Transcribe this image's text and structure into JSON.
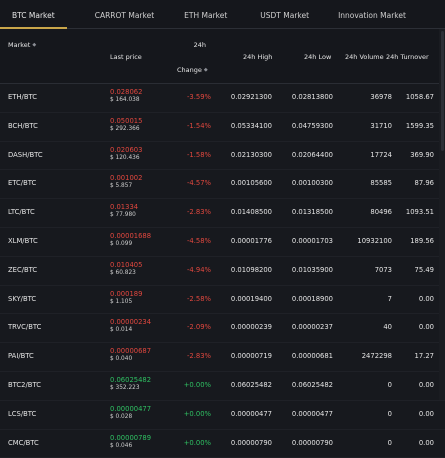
{
  "tabs": [
    {
      "label": "BTC Market"
    },
    {
      "label": "CARROT Market"
    },
    {
      "label": "ETH Market"
    },
    {
      "label": "USDT Market"
    },
    {
      "label": "Innovation Market"
    }
  ],
  "colors": {
    "accent": "#c9a64a",
    "down": "#e0473e",
    "up": "#2fbf62",
    "background": "#15171c"
  },
  "header": {
    "market": "Market",
    "last_price": "Last price",
    "change_line1": "24h",
    "change_line2": "Change",
    "high": "24h High",
    "low": "24h Low",
    "volume": "24h Volume",
    "turnover": "24h Turnover"
  },
  "rows": [
    {
      "pair": "ETH/BTC",
      "price": "0.028062",
      "usd": "$ 164.038",
      "change": "-3.59%",
      "high": "0.02921300",
      "low": "0.02813800",
      "volume": "36978",
      "turnover": "1058.67",
      "dir": "down"
    },
    {
      "pair": "BCH/BTC",
      "price": "0.050015",
      "usd": "$ 292.366",
      "change": "-1.54%",
      "high": "0.05334100",
      "low": "0.04759300",
      "volume": "31710",
      "turnover": "1599.35",
      "dir": "down"
    },
    {
      "pair": "DASH/BTC",
      "price": "0.020603",
      "usd": "$ 120.436",
      "change": "-1.58%",
      "high": "0.02130300",
      "low": "0.02064400",
      "volume": "17724",
      "turnover": "369.90",
      "dir": "down"
    },
    {
      "pair": "ETC/BTC",
      "price": "0.001002",
      "usd": "$ 5.857",
      "change": "-4.57%",
      "high": "0.00105600",
      "low": "0.00100300",
      "volume": "85585",
      "turnover": "87.96",
      "dir": "down"
    },
    {
      "pair": "LTC/BTC",
      "price": "0.01334",
      "usd": "$ 77.980",
      "change": "-2.83%",
      "high": "0.01408500",
      "low": "0.01318500",
      "volume": "80496",
      "turnover": "1093.51",
      "dir": "down"
    },
    {
      "pair": "XLM/BTC",
      "price": "0.00001688",
      "usd": "$ 0.099",
      "change": "-4.58%",
      "high": "0.00001776",
      "low": "0.00001703",
      "volume": "10932100",
      "turnover": "189.56",
      "dir": "down"
    },
    {
      "pair": "ZEC/BTC",
      "price": "0.010405",
      "usd": "$ 60.823",
      "change": "-4.94%",
      "high": "0.01098200",
      "low": "0.01035900",
      "volume": "7073",
      "turnover": "75.49",
      "dir": "down"
    },
    {
      "pair": "SKY/BTC",
      "price": "0.000189",
      "usd": "$ 1.105",
      "change": "-2.58%",
      "high": "0.00019400",
      "low": "0.00018900",
      "volume": "7",
      "turnover": "0.00",
      "dir": "down"
    },
    {
      "pair": "TRVC/BTC",
      "price": "0.00000234",
      "usd": "$ 0.014",
      "change": "-2.09%",
      "high": "0.00000239",
      "low": "0.00000237",
      "volume": "40",
      "turnover": "0.00",
      "dir": "down"
    },
    {
      "pair": "PAI/BTC",
      "price": "0.00000687",
      "usd": "$ 0.040",
      "change": "-2.83%",
      "high": "0.00000719",
      "low": "0.00000681",
      "volume": "2472298",
      "turnover": "17.27",
      "dir": "down"
    },
    {
      "pair": "BTC2/BTC",
      "price": "0.06025482",
      "usd": "$ 352.223",
      "change": "+0.00%",
      "high": "0.06025482",
      "low": "0.06025482",
      "volume": "0",
      "turnover": "0.00",
      "dir": "up"
    },
    {
      "pair": "LCS/BTC",
      "price": "0.00000477",
      "usd": "$ 0.028",
      "change": "+0.00%",
      "high": "0.00000477",
      "low": "0.00000477",
      "volume": "0",
      "turnover": "0.00",
      "dir": "up"
    },
    {
      "pair": "CMC/BTC",
      "price": "0.00000789",
      "usd": "$ 0.046",
      "change": "+0.00%",
      "high": "0.00000790",
      "low": "0.00000790",
      "volume": "0",
      "turnover": "0.00",
      "dir": "up"
    }
  ]
}
